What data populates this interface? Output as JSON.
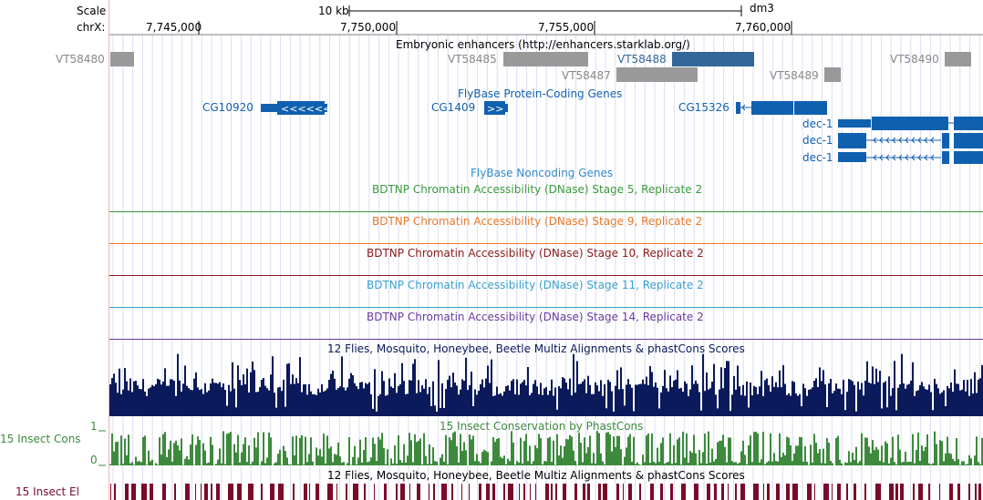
{
  "ruler": {
    "scale_label": "Scale",
    "chrom_label": "chrX:",
    "scale_bar_label": "10 kb",
    "assembly": "dm3",
    "ticks": [
      "7,745,000",
      "7,750,000",
      "7,755,000",
      "7,760,000"
    ]
  },
  "tracks": {
    "enhancers": {
      "title": "Embryonic enhancers (http://enhancers.starklab.org/)",
      "items": [
        "VT58480",
        "VT58485",
        "VT58487",
        "VT58488",
        "VT58489",
        "VT58490"
      ],
      "colors": {
        "normal": "#999999",
        "highlight": "#336699"
      }
    },
    "protein_coding": {
      "title": "FlyBase Protein-Coding Genes",
      "genes": [
        "CG10920",
        "CG1409",
        "CG15326",
        "dec-1",
        "dec-1",
        "dec-1"
      ],
      "color": "#1060b0"
    },
    "noncoding": {
      "title": "FlyBase Noncoding Genes",
      "color": "#3388cc"
    },
    "dnase": [
      {
        "title": "BDTNP Chromatin Accessibility (DNase) Stage 5, Replicate 2",
        "color": "#3a9a3a"
      },
      {
        "title": "BDTNP Chromatin Accessibility (DNase) Stage 9, Replicate 2",
        "color": "#e8792a"
      },
      {
        "title": "BDTNP Chromatin Accessibility (DNase) Stage 10, Replicate 2",
        "color": "#8b1a1a"
      },
      {
        "title": "BDTNP Chromatin Accessibility (DNase) Stage 11, Replicate 2",
        "color": "#3aa0d0"
      },
      {
        "title": "BDTNP Chromatin Accessibility (DNase) Stage 14, Replicate 2",
        "color": "#6a3aa0"
      }
    ],
    "multiz": {
      "title": "12 Flies, Mosquito, Honeybee, Beetle Multiz Alignments & phastCons Scores",
      "color": "#0a1a5a"
    },
    "phastcons": {
      "title": "15 Insect Conservation by PhastCons",
      "side_label": "15 Insect Cons",
      "ymax": "1",
      "ymin": "0",
      "color": "#3d8a3d"
    },
    "multiz2": {
      "title": "12 Flies, Mosquito, Honeybee, Beetle Multiz Alignments & phastCons Scores"
    },
    "elements": {
      "side_label": "15 Insect El",
      "color": "#7a0a2a"
    }
  }
}
